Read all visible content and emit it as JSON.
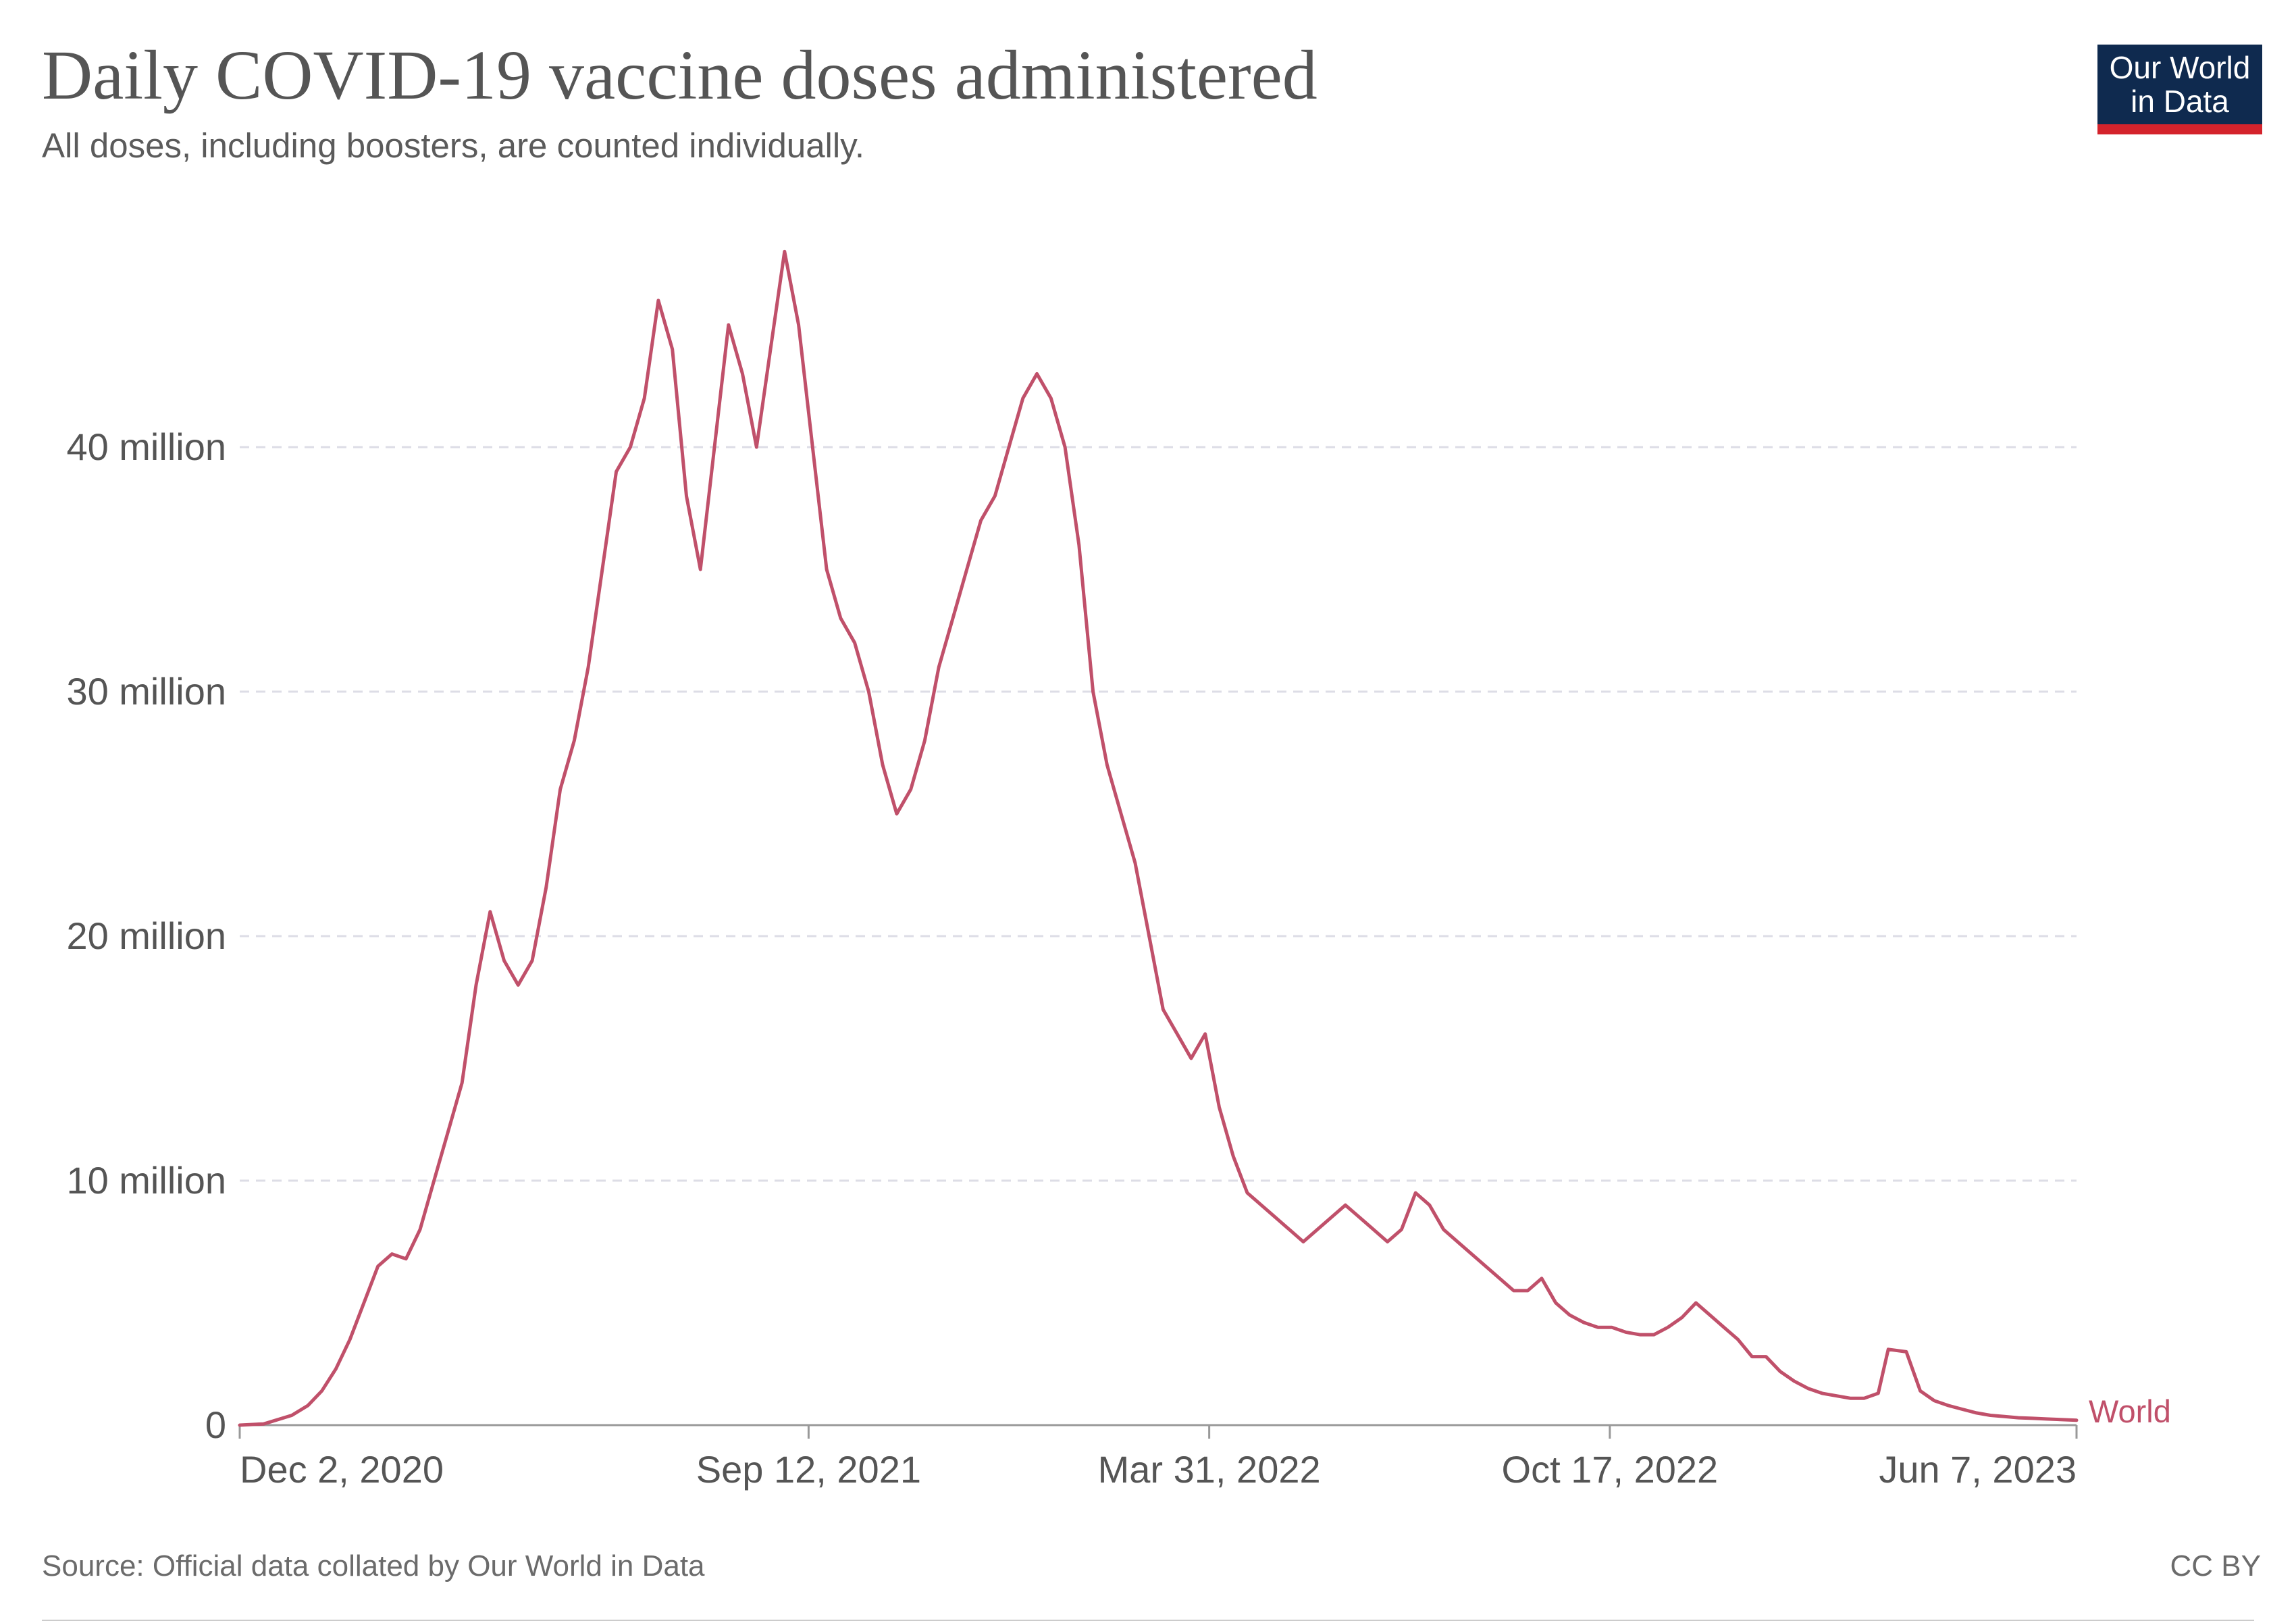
{
  "header": {
    "title": "Daily COVID-19 vaccine doses administered",
    "subtitle": "All doses, including boosters, are counted individually.",
    "logo_line1": "Our World",
    "logo_line2": "in Data"
  },
  "footer": {
    "source": "Source: Official data collated by Our World in Data",
    "license": "CC BY"
  },
  "colors": {
    "series": "#c0506a",
    "grid": "#dddde6",
    "axis": "#999999",
    "logo_bg": "#0f2a4f",
    "logo_bar": "#d4232c"
  },
  "chart_data": {
    "type": "line",
    "title": "Daily COVID-19 vaccine doses administered",
    "subtitle": "All doses, including boosters, are counted individually.",
    "xlabel": "",
    "ylabel": "",
    "x_ticks": [
      "2020-12-02",
      "2021-09-12",
      "2022-03-31",
      "2022-10-17",
      "2023-06-07"
    ],
    "x_tick_labels": [
      "Dec 2, 2020",
      "Sep 12, 2021",
      "Mar 31, 2022",
      "Oct 17, 2022",
      "Jun 7, 2023"
    ],
    "y_ticks": [
      0,
      10000000,
      20000000,
      30000000,
      40000000
    ],
    "y_tick_labels": [
      "0",
      "10 million",
      "20 million",
      "30 million",
      "40 million"
    ],
    "xlim": [
      "2020-12-02",
      "2023-06-07"
    ],
    "ylim": [
      0,
      50000000
    ],
    "grid": true,
    "legend": "end-of-line label",
    "series": [
      {
        "name": "World",
        "color": "#c0506a",
        "points": [
          [
            "2020-12-02",
            0
          ],
          [
            "2020-12-14",
            50000
          ],
          [
            "2020-12-28",
            400000
          ],
          [
            "2021-01-05",
            800000
          ],
          [
            "2021-01-12",
            1400000
          ],
          [
            "2021-01-19",
            2300000
          ],
          [
            "2021-01-26",
            3500000
          ],
          [
            "2021-02-02",
            5000000
          ],
          [
            "2021-02-09",
            6500000
          ],
          [
            "2021-02-16",
            7000000
          ],
          [
            "2021-02-23",
            6800000
          ],
          [
            "2021-03-02",
            8000000
          ],
          [
            "2021-03-09",
            10000000
          ],
          [
            "2021-03-16",
            12000000
          ],
          [
            "2021-03-23",
            14000000
          ],
          [
            "2021-03-30",
            18000000
          ],
          [
            "2021-04-06",
            21000000
          ],
          [
            "2021-04-13",
            19000000
          ],
          [
            "2021-04-20",
            18000000
          ],
          [
            "2021-04-27",
            19000000
          ],
          [
            "2021-05-04",
            22000000
          ],
          [
            "2021-05-11",
            26000000
          ],
          [
            "2021-05-18",
            28000000
          ],
          [
            "2021-05-25",
            31000000
          ],
          [
            "2021-06-01",
            35000000
          ],
          [
            "2021-06-08",
            39000000
          ],
          [
            "2021-06-15",
            40000000
          ],
          [
            "2021-06-22",
            42000000
          ],
          [
            "2021-06-29",
            46000000
          ],
          [
            "2021-07-06",
            44000000
          ],
          [
            "2021-07-13",
            38000000
          ],
          [
            "2021-07-20",
            35000000
          ],
          [
            "2021-07-27",
            40000000
          ],
          [
            "2021-08-03",
            45000000
          ],
          [
            "2021-08-10",
            43000000
          ],
          [
            "2021-08-17",
            40000000
          ],
          [
            "2021-08-24",
            44000000
          ],
          [
            "2021-08-31",
            48000000
          ],
          [
            "2021-09-07",
            45000000
          ],
          [
            "2021-09-14",
            40000000
          ],
          [
            "2021-09-21",
            35000000
          ],
          [
            "2021-09-28",
            33000000
          ],
          [
            "2021-10-05",
            32000000
          ],
          [
            "2021-10-12",
            30000000
          ],
          [
            "2021-10-19",
            27000000
          ],
          [
            "2021-10-26",
            25000000
          ],
          [
            "2021-11-02",
            26000000
          ],
          [
            "2021-11-09",
            28000000
          ],
          [
            "2021-11-16",
            31000000
          ],
          [
            "2021-11-23",
            33000000
          ],
          [
            "2021-11-30",
            35000000
          ],
          [
            "2021-12-07",
            37000000
          ],
          [
            "2021-12-14",
            38000000
          ],
          [
            "2021-12-21",
            40000000
          ],
          [
            "2021-12-28",
            42000000
          ],
          [
            "2022-01-04",
            43000000
          ],
          [
            "2022-01-11",
            42000000
          ],
          [
            "2022-01-18",
            40000000
          ],
          [
            "2022-01-25",
            36000000
          ],
          [
            "2022-02-01",
            30000000
          ],
          [
            "2022-02-08",
            27000000
          ],
          [
            "2022-02-15",
            25000000
          ],
          [
            "2022-02-22",
            23000000
          ],
          [
            "2022-03-01",
            20000000
          ],
          [
            "2022-03-08",
            17000000
          ],
          [
            "2022-03-15",
            16000000
          ],
          [
            "2022-03-22",
            15000000
          ],
          [
            "2022-03-29",
            16000000
          ],
          [
            "2022-04-05",
            13000000
          ],
          [
            "2022-04-12",
            11000000
          ],
          [
            "2022-04-19",
            9500000
          ],
          [
            "2022-04-26",
            9000000
          ],
          [
            "2022-05-03",
            8500000
          ],
          [
            "2022-05-10",
            8000000
          ],
          [
            "2022-05-17",
            7500000
          ],
          [
            "2022-05-24",
            8000000
          ],
          [
            "2022-05-31",
            8500000
          ],
          [
            "2022-06-07",
            9000000
          ],
          [
            "2022-06-14",
            8500000
          ],
          [
            "2022-06-21",
            8000000
          ],
          [
            "2022-06-28",
            7500000
          ],
          [
            "2022-07-05",
            8000000
          ],
          [
            "2022-07-12",
            9500000
          ],
          [
            "2022-07-19",
            9000000
          ],
          [
            "2022-07-26",
            8000000
          ],
          [
            "2022-08-02",
            7500000
          ],
          [
            "2022-08-09",
            7000000
          ],
          [
            "2022-08-16",
            6500000
          ],
          [
            "2022-08-23",
            6000000
          ],
          [
            "2022-08-30",
            5500000
          ],
          [
            "2022-09-06",
            5500000
          ],
          [
            "2022-09-13",
            6000000
          ],
          [
            "2022-09-20",
            5000000
          ],
          [
            "2022-09-27",
            4500000
          ],
          [
            "2022-10-04",
            4200000
          ],
          [
            "2022-10-11",
            4000000
          ],
          [
            "2022-10-18",
            4000000
          ],
          [
            "2022-10-25",
            3800000
          ],
          [
            "2022-11-01",
            3700000
          ],
          [
            "2022-11-08",
            3700000
          ],
          [
            "2022-11-15",
            4000000
          ],
          [
            "2022-11-22",
            4400000
          ],
          [
            "2022-11-29",
            5000000
          ],
          [
            "2022-12-06",
            4500000
          ],
          [
            "2022-12-13",
            4000000
          ],
          [
            "2022-12-20",
            3500000
          ],
          [
            "2022-12-27",
            2800000
          ],
          [
            "2023-01-03",
            2800000
          ],
          [
            "2023-01-10",
            2200000
          ],
          [
            "2023-01-17",
            1800000
          ],
          [
            "2023-01-24",
            1500000
          ],
          [
            "2023-01-31",
            1300000
          ],
          [
            "2023-02-07",
            1200000
          ],
          [
            "2023-02-14",
            1100000
          ],
          [
            "2023-02-21",
            1100000
          ],
          [
            "2023-02-28",
            1300000
          ],
          [
            "2023-03-05",
            3100000
          ],
          [
            "2023-03-14",
            3000000
          ],
          [
            "2023-03-21",
            1400000
          ],
          [
            "2023-03-28",
            1000000
          ],
          [
            "2023-04-04",
            800000
          ],
          [
            "2023-04-11",
            650000
          ],
          [
            "2023-04-18",
            500000
          ],
          [
            "2023-04-25",
            400000
          ],
          [
            "2023-05-02",
            350000
          ],
          [
            "2023-05-09",
            300000
          ],
          [
            "2023-05-16",
            280000
          ],
          [
            "2023-05-23",
            250000
          ],
          [
            "2023-05-30",
            230000
          ],
          [
            "2023-06-07",
            200000
          ]
        ]
      }
    ]
  }
}
